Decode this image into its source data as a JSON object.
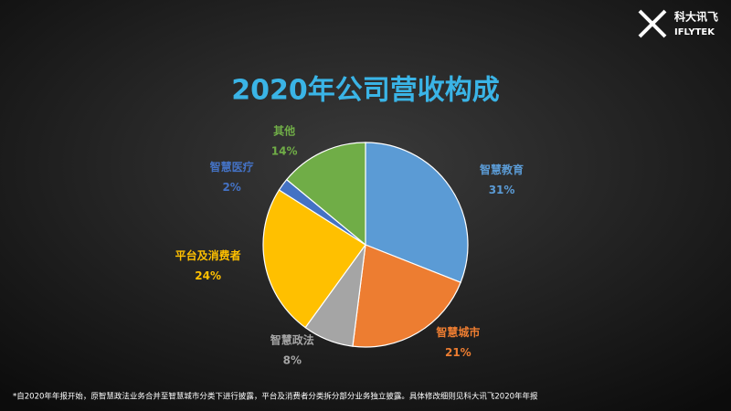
{
  "chart_data": {
    "type": "pie",
    "title": "2020年公司营收构成",
    "categories": [
      "智慧教育",
      "智慧城市",
      "智慧政法",
      "平台及消费者",
      "智慧医疗",
      "其他"
    ],
    "values": [
      31,
      21,
      8,
      24,
      2,
      14
    ],
    "value_labels": [
      "31%",
      "21%",
      "8%",
      "24%",
      "2%",
      "14%"
    ],
    "colors": [
      "#5b9bd5",
      "#ed7d31",
      "#a5a5a5",
      "#ffc000",
      "#4472c4",
      "#70ad47"
    ],
    "footnote": "*自2020年年报开始，原智慧政法业务合并至智慧城市分类下进行披露，平台及消费者分类拆分部分业务独立披露。具体修改细则见科大讯飞2020年年报"
  },
  "logo": {
    "name": "科大讯飞",
    "brand": "IFLYTEK"
  }
}
